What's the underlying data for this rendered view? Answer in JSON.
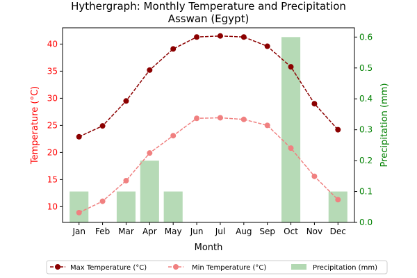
{
  "chart_data": {
    "type": "line",
    "title": "Hythergraph: Monthly Temperature and Precipitation",
    "subtitle": "Asswan (Egypt)",
    "xlabel": "Month",
    "ylabel_left": "Temperature (°C)",
    "ylabel_right": "Precipitation (mm)",
    "categories": [
      "Jan",
      "Feb",
      "Mar",
      "Apr",
      "May",
      "Jun",
      "Jul",
      "Aug",
      "Sep",
      "Oct",
      "Nov",
      "Dec"
    ],
    "ylim_left": [
      7.1,
      43.0
    ],
    "yticks_left": [
      10,
      15,
      20,
      25,
      30,
      35,
      40
    ],
    "ylim_right": [
      0,
      0.63
    ],
    "yticks_right": [
      0.0,
      0.1,
      0.2,
      0.3,
      0.4,
      0.5,
      0.6
    ],
    "series": [
      {
        "name": "Max Temperature (°C)",
        "kind": "line",
        "axis": "left",
        "color": "#8b0000",
        "values": [
          22.9,
          24.9,
          29.5,
          35.2,
          39.1,
          41.3,
          41.5,
          41.3,
          39.6,
          35.8,
          29.0,
          24.2
        ]
      },
      {
        "name": "Min Temperature (°C)",
        "kind": "line",
        "axis": "left",
        "color": "#f08080",
        "values": [
          8.9,
          11.0,
          14.8,
          19.9,
          23.1,
          26.3,
          26.4,
          26.1,
          25.0,
          20.8,
          15.6,
          11.3
        ]
      },
      {
        "name": "Precipitation (mm)",
        "kind": "bar",
        "axis": "right",
        "color": "#b2d8b2",
        "values": [
          0.1,
          0.0,
          0.1,
          0.2,
          0.1,
          0.0,
          0.0,
          0.0,
          0.0,
          0.6,
          0.0,
          0.1
        ]
      }
    ],
    "left_axis_color": "#ff0000",
    "right_axis_color": "#008000",
    "grid": false,
    "legend_placement": "bottom-center"
  }
}
